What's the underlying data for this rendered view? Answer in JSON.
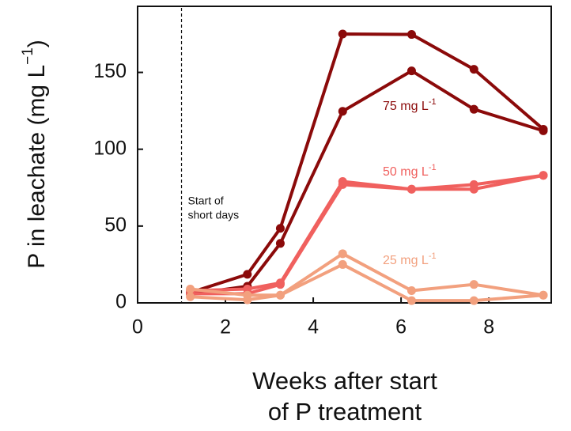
{
  "chart_data": {
    "type": "line",
    "y_label": {
      "text": "P in leachate (mg L",
      "sup": "−1",
      "end": ")"
    },
    "x_label": [
      "Weeks after start",
      "of P treatment"
    ],
    "x": [
      1.2,
      2.5,
      3.25,
      4.67,
      6.24,
      7.66,
      9.24
    ],
    "series": [
      {
        "color": "#8b0a0a",
        "values": [
          6.7,
          18.6,
          48.5,
          175,
          174.7,
          152,
          113
        ]
      },
      {
        "color": "#8b0a0a",
        "values": [
          5.7,
          10.8,
          38.7,
          124.7,
          151,
          126,
          112
        ]
      },
      {
        "color": "#f0605e",
        "values": [
          8,
          9,
          13,
          79,
          74,
          77,
          83
        ]
      },
      {
        "color": "#f0605e",
        "values": [
          6,
          6,
          12,
          77,
          74,
          74,
          83
        ]
      },
      {
        "color": "#f2a07e",
        "values": [
          9,
          5,
          5,
          32,
          8,
          12,
          5
        ]
      },
      {
        "color": "#f2a07e",
        "values": [
          4,
          2,
          5,
          25,
          1.5,
          1.5,
          5
        ]
      }
    ],
    "annotations": [
      {
        "text": "75 mg L",
        "sup": "-1",
        "color": "#8b0a0a"
      },
      {
        "text": "50 mg L",
        "sup": "-1",
        "color": "#f0605e"
      },
      {
        "text": "25 mg L",
        "sup": "-1",
        "color": "#f2a07e"
      }
    ],
    "marker": {
      "x": 1,
      "text": [
        "Start of",
        "short days"
      ]
    },
    "xlim": [
      0,
      9.42
    ],
    "ylim": [
      0,
      193
    ],
    "xticks": [
      0,
      2,
      4,
      6,
      8
    ],
    "yticks": [
      0,
      50,
      100,
      150
    ]
  }
}
